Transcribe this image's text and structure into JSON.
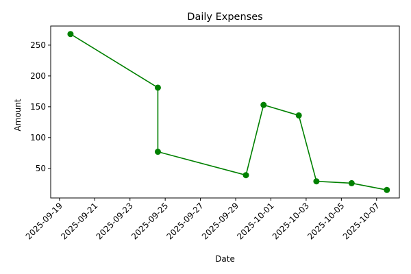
{
  "chart_data": {
    "type": "line",
    "title": "Daily Expenses",
    "xlabel": "Date",
    "ylabel": "Amount",
    "color": "#008000",
    "marker": "circle",
    "grid": false,
    "x_ticks": [
      "2025-09-19",
      "2025-09-21",
      "2025-09-23",
      "2025-09-25",
      "2025-09-27",
      "2025-09-29",
      "2025-10-01",
      "2025-10-03",
      "2025-10-05",
      "2025-10-07"
    ],
    "y_ticks": [
      50,
      100,
      150,
      200,
      250
    ],
    "x_range": [
      "2025-09-18T12:00",
      "2025-10-08T07:00"
    ],
    "ylim": [
      2,
      281
    ],
    "series": [
      {
        "name": "Daily Expenses",
        "points": [
          {
            "x": "2025-09-19T15:00",
            "y": 268
          },
          {
            "x": "2025-09-24T14:00",
            "y": 181
          },
          {
            "x": "2025-09-24T14:00",
            "y": 77
          },
          {
            "x": "2025-09-29T14:00",
            "y": 39
          },
          {
            "x": "2025-09-30T14:00",
            "y": 153
          },
          {
            "x": "2025-10-02T14:00",
            "y": 136
          },
          {
            "x": "2025-10-03T14:00",
            "y": 29
          },
          {
            "x": "2025-10-05T14:00",
            "y": 26
          },
          {
            "x": "2025-10-07T14:00",
            "y": 15
          }
        ]
      }
    ]
  }
}
